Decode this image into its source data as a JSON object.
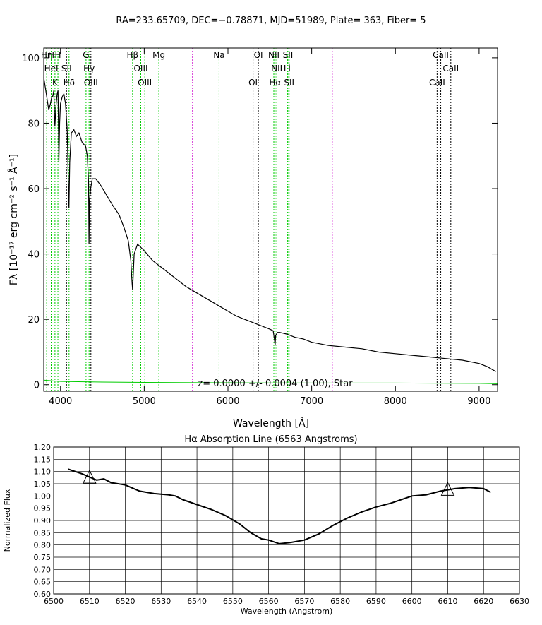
{
  "chart_data": [
    {
      "type": "line",
      "title": "RA=233.65709, DEC=−0.78871, MJD=51989, Plate= 363, Fiber=  5",
      "xlabel": "Wavelength [Å]",
      "ylabel": "Fλ [10⁻¹⁷ erg cm⁻² s⁻¹ Å⁻¹]",
      "xlim": [
        3800,
        9220
      ],
      "ylim": [
        -2,
        103
      ],
      "x_ticks": [
        4000,
        5000,
        6000,
        7000,
        8000,
        9000
      ],
      "y_ticks": [
        0,
        20,
        40,
        60,
        80,
        100
      ],
      "annotation": "z= 0.0000 +/- 0.0004 (1.00), Star",
      "series": [
        {
          "role": "flux",
          "color": "#000000",
          "x": [
            3800,
            3830,
            3860,
            3880,
            3895,
            3905,
            3920,
            3933,
            3945,
            3960,
            3970,
            3980,
            3990,
            4000,
            4020,
            4040,
            4060,
            4080,
            4090,
            4101,
            4110,
            4130,
            4160,
            4190,
            4220,
            4260,
            4300,
            4320,
            4335,
            4340,
            4345,
            4360,
            4380,
            4420,
            4480,
            4550,
            4620,
            4700,
            4760,
            4810,
            4840,
            4855,
            4861,
            4868,
            4880,
            4920,
            5000,
            5100,
            5200,
            5300,
            5400,
            5500,
            5600,
            5700,
            5800,
            5900,
            6000,
            6100,
            6200,
            6300,
            6400,
            6500,
            6540,
            6555,
            6563,
            6570,
            6590,
            6620,
            6700,
            6800,
            6900,
            7000,
            7200,
            7400,
            7600,
            7800,
            8000,
            8200,
            8400,
            8600,
            8800,
            9000,
            9100,
            9200
          ],
          "y": [
            94,
            89,
            84,
            86,
            88,
            88,
            90,
            79,
            85,
            89,
            90,
            68,
            80,
            86,
            88,
            89,
            86,
            78,
            66,
            54,
            68,
            77,
            78,
            76,
            77,
            74,
            73,
            70,
            62,
            43,
            56,
            60,
            63,
            63,
            61,
            58,
            55,
            52,
            48,
            44,
            38,
            31,
            29,
            33,
            40,
            43,
            41,
            38,
            36,
            34,
            32,
            30,
            28.5,
            27,
            25.5,
            24,
            22.5,
            21,
            20,
            19,
            18,
            17,
            16.5,
            14,
            12,
            15,
            16,
            16,
            15.5,
            14.5,
            14,
            13,
            12,
            11.5,
            11,
            10,
            9.5,
            9,
            8.5,
            8,
            7.5,
            6.5,
            5.5,
            4
          ]
        },
        {
          "role": "error",
          "color": "#00cc00",
          "x": [
            3800,
            4000,
            4500,
            5000,
            6000,
            7000,
            8000,
            9000,
            9220
          ],
          "y": [
            1.4,
            1.0,
            0.8,
            0.7,
            0.6,
            0.5,
            0.5,
            0.4,
            0.3
          ]
        }
      ],
      "line_markers": [
        {
          "label": "Hη",
          "x": 3835,
          "row": 1,
          "color": "#00cc00"
        },
        {
          "label": "H",
          "x": 3889,
          "row": 1,
          "color": "#00cc00"
        },
        {
          "label": "HeI",
          "x": 3889,
          "row": 2,
          "color": "#00cc00"
        },
        {
          "label": "K",
          "x": 3934,
          "row": 3,
          "color": "#00cc00"
        },
        {
          "label": "H",
          "x": 3969,
          "row": 1,
          "color": "#00cc00"
        },
        {
          "label": "SII",
          "x": 4072,
          "row": 2,
          "color": "#000000"
        },
        {
          "label": "Hδ",
          "x": 4102,
          "row": 3,
          "color": "#00cc00"
        },
        {
          "label": "G",
          "x": 4305,
          "row": 1,
          "color": "#00cc00"
        },
        {
          "label": "Hγ",
          "x": 4341,
          "row": 2,
          "color": "#00cc00"
        },
        {
          "label": "OIII",
          "x": 4363,
          "row": 3,
          "color": "#000000"
        },
        {
          "label": "Hβ",
          "x": 4861,
          "row": 1,
          "color": "#00cc00"
        },
        {
          "label": "OIII",
          "x": 4959,
          "row": 2,
          "color": "#00cc00"
        },
        {
          "label": "OIII",
          "x": 5007,
          "row": 3,
          "color": "#00cc00"
        },
        {
          "label": "Mg",
          "x": 5175,
          "row": 1,
          "color": "#00cc00"
        },
        {
          "label": "",
          "x": 5577,
          "row": 0,
          "color": "#cc00cc"
        },
        {
          "label": "Na",
          "x": 5894,
          "row": 1,
          "color": "#00cc00"
        },
        {
          "label": "OI",
          "x": 6300,
          "row": 3,
          "color": "#000000"
        },
        {
          "label": "OI",
          "x": 6363,
          "row": 1,
          "color": "#000000"
        },
        {
          "label": "NII",
          "x": 6548,
          "row": 1,
          "color": "#00cc00"
        },
        {
          "label": "NII",
          "x": 6583,
          "row": 2,
          "color": "#00cc00"
        },
        {
          "label": "Hα",
          "x": 6563,
          "row": 3,
          "color": "#00cc00"
        },
        {
          "label": "Li",
          "x": 6707,
          "row": 2,
          "color": "#00cc00"
        },
        {
          "label": "SII",
          "x": 6716,
          "row": 1,
          "color": "#00cc00"
        },
        {
          "label": "SII",
          "x": 6731,
          "row": 3,
          "color": "#00cc00"
        },
        {
          "label": "",
          "x": 7246,
          "row": 0,
          "color": "#cc00cc"
        },
        {
          "label": "CaII",
          "x": 8498,
          "row": 3,
          "color": "#000000"
        },
        {
          "label": "CaII",
          "x": 8542,
          "row": 1,
          "color": "#000000"
        },
        {
          "label": "CaII",
          "x": 8662,
          "row": 2,
          "color": "#000000"
        }
      ]
    },
    {
      "type": "line",
      "title": "Hα Absorption Line (6563 Angstroms)",
      "xlabel": "Wavelength (Angstrom)",
      "ylabel": "Normalized Flux",
      "xlim": [
        6500,
        6630
      ],
      "ylim": [
        0.6,
        1.2
      ],
      "x_ticks": [
        6500,
        6510,
        6520,
        6530,
        6540,
        6550,
        6560,
        6570,
        6580,
        6590,
        6600,
        6610,
        6620,
        6630
      ],
      "y_ticks": [
        0.6,
        0.65,
        0.7,
        0.75,
        0.8,
        0.85,
        0.9,
        0.95,
        1.0,
        1.05,
        1.1,
        1.15,
        1.2
      ],
      "y_tick_labels": [
        "0.60",
        "0.65",
        "0.70",
        "0.75",
        "0.80",
        "0.85",
        "0.90",
        "0.95",
        "1.00",
        "1.05",
        "1.10",
        "1.15",
        "1.20"
      ],
      "grid": true,
      "series": [
        {
          "color": "#000000",
          "x": [
            6504,
            6508,
            6512,
            6514,
            6516,
            6520,
            6524,
            6528,
            6532,
            6534,
            6536,
            6540,
            6544,
            6548,
            6552,
            6555,
            6558,
            6560,
            6563,
            6566,
            6570,
            6574,
            6578,
            6582,
            6586,
            6590,
            6594,
            6598,
            6600,
            6604,
            6608,
            6612,
            6616,
            6620,
            6622
          ],
          "y": [
            1.11,
            1.09,
            1.065,
            1.07,
            1.055,
            1.045,
            1.02,
            1.01,
            1.005,
            1.0,
            0.985,
            0.965,
            0.945,
            0.92,
            0.885,
            0.85,
            0.825,
            0.82,
            0.805,
            0.81,
            0.82,
            0.845,
            0.88,
            0.91,
            0.935,
            0.955,
            0.97,
            0.99,
            1.0,
            1.005,
            1.02,
            1.03,
            1.035,
            1.03,
            1.015
          ]
        }
      ],
      "markers": [
        {
          "shape": "triangle",
          "x": 6510,
          "y": 1.07
        },
        {
          "shape": "triangle",
          "x": 6610,
          "y": 1.02
        }
      ]
    }
  ]
}
